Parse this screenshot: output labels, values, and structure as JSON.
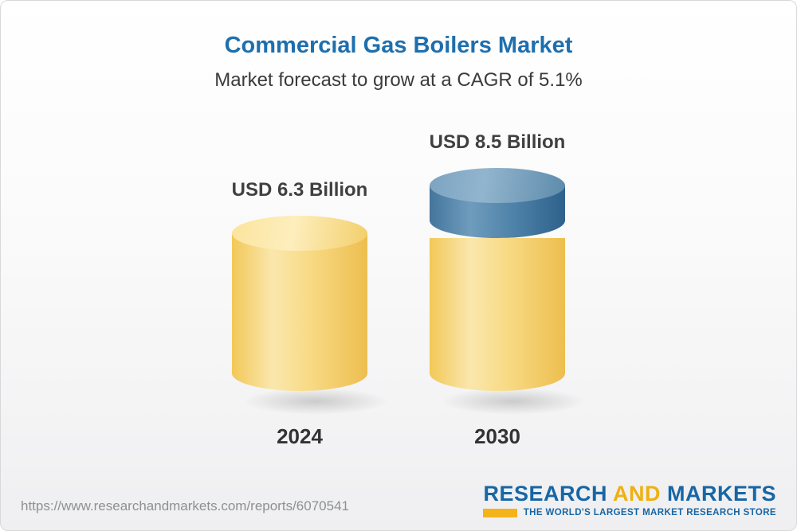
{
  "page": {
    "title": "Commercial Gas Boilers Market",
    "subtitle": "Market forecast to grow at a CAGR of 5.1%",
    "source_url": "https://www.researchandmarkets.com/reports/6070541"
  },
  "logo": {
    "word1": "RESEARCH",
    "word2": "AND",
    "word3": "MARKETS",
    "tagline": "THE WORLD'S LARGEST MARKET RESEARCH STORE"
  },
  "colors": {
    "title_blue": "#1e6fae",
    "bar_yellow": "#f6cf6b",
    "bar_growth_blue": "#4e82a8",
    "logo_blue": "#1766a5",
    "logo_yellow": "#eeb111"
  },
  "chart_data": {
    "type": "bar",
    "title": "Commercial Gas Boilers Market",
    "subtitle": "Market forecast to grow at a CAGR of 5.1%",
    "cagr": "5.1%",
    "unit": "USD Billion",
    "categories": [
      "2024",
      "2030"
    ],
    "values": [
      6.3,
      8.5
    ],
    "labels": [
      "USD 6.3 Billion",
      "USD 8.5 Billion"
    ],
    "ylim": [
      0,
      8.5
    ],
    "legend": "none",
    "grid": false,
    "notes": "2030 bar shown as yellow base equal to 2024 value with blue segment on top representing growth"
  }
}
